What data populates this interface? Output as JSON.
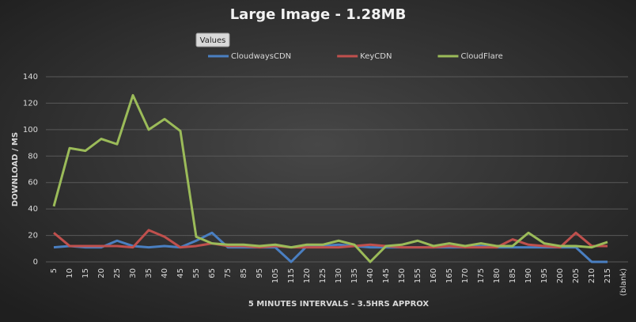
{
  "chart_data": {
    "type": "line",
    "title": "Large Image - 1.28MB",
    "field_button": "Values",
    "x_label": "5 MINUTES INTERVALS - 3.5HRS APPROX",
    "y_label": "DOWNLOAD / MS",
    "categories": [
      "5",
      "10",
      "15",
      "20",
      "25",
      "30",
      "35",
      "40",
      "45",
      "55",
      "65",
      "75",
      "85",
      "95",
      "105",
      "115",
      "120",
      "125",
      "130",
      "135",
      "140",
      "145",
      "150",
      "155",
      "160",
      "165",
      "170",
      "175",
      "180",
      "185",
      "190",
      "195",
      "200",
      "205",
      "210",
      "215",
      "(blank)"
    ],
    "series": [
      {
        "name": "CloudwaysCDN",
        "color": "#4a7fc1",
        "values": [
          11,
          12,
          11,
          11,
          16,
          12,
          11,
          12,
          11,
          16,
          22,
          11,
          11,
          11,
          11,
          0,
          12,
          12,
          13,
          12,
          11,
          11,
          11,
          11,
          11,
          11,
          11,
          12,
          11,
          11,
          11,
          11,
          11,
          11,
          0,
          0,
          null
        ]
      },
      {
        "name": "KeyCDN",
        "color": "#c0504d",
        "values": [
          22,
          12,
          12,
          12,
          12,
          11,
          24,
          19,
          11,
          12,
          14,
          12,
          12,
          11,
          12,
          11,
          11,
          11,
          11,
          12,
          13,
          12,
          11,
          11,
          11,
          12,
          11,
          11,
          11,
          17,
          13,
          12,
          11,
          22,
          12,
          12,
          null
        ]
      },
      {
        "name": "CloudFlare",
        "color": "#9bbb59",
        "values": [
          42,
          86,
          84,
          93,
          89,
          126,
          100,
          108,
          99,
          19,
          14,
          13,
          13,
          12,
          13,
          11,
          13,
          13,
          16,
          13,
          0,
          12,
          13,
          16,
          12,
          14,
          12,
          14,
          12,
          12,
          22,
          14,
          12,
          12,
          11,
          15,
          null
        ]
      }
    ],
    "ylim": [
      0,
      140
    ],
    "yticks": [
      0,
      20,
      40,
      60,
      80,
      100,
      120,
      140
    ],
    "grid": true,
    "legend": "top"
  }
}
